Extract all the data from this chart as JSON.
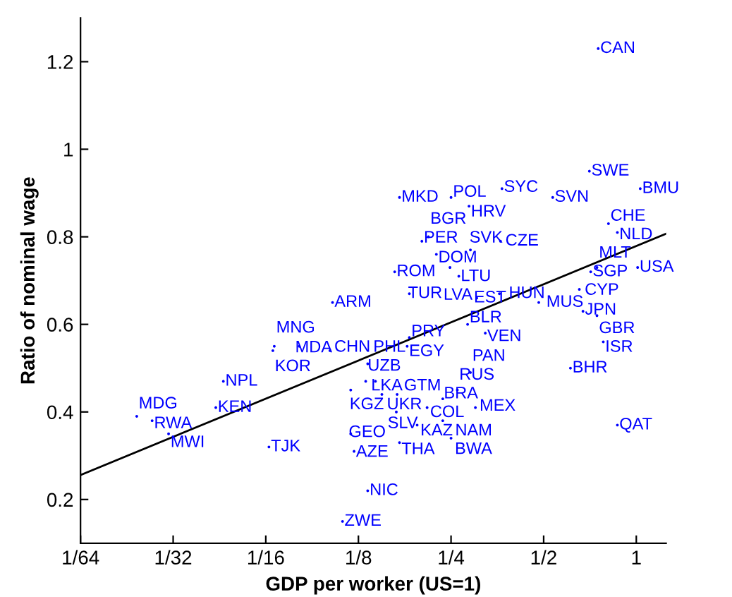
{
  "chart_data": {
    "type": "scatter",
    "xlabel": "GDP per worker (US=1)",
    "ylabel": "Ratio of nominal wage",
    "log": "x",
    "xlim": [
      0.015625,
      1.25
    ],
    "ylim": [
      0.1,
      1.3
    ],
    "xticks": [
      {
        "value": 0.015625,
        "label": "1/64"
      },
      {
        "value": 0.03125,
        "label": "1/32"
      },
      {
        "value": 0.0625,
        "label": "1/16"
      },
      {
        "value": 0.125,
        "label": "1/8"
      },
      {
        "value": 0.25,
        "label": "1/4"
      },
      {
        "value": 0.5,
        "label": "1/2"
      },
      1
    ],
    "yticks": [
      0.2,
      0.4,
      0.6,
      0.8,
      1,
      1.2
    ],
    "grid": false,
    "legend": false,
    "series": [
      {
        "marker": "circle",
        "color": "#0000ff",
        "x": [
          0.752,
          0.704,
          1.03,
          0.366,
          0.535,
          0.17,
          0.25,
          0.286,
          0.812,
          0.868,
          0.201,
          0.211,
          0.289,
          0.362,
          0.224,
          0.248,
          0.265,
          0.164,
          0.183,
          0.103,
          0.303,
          0.359,
          0.482,
          0.283,
          0.323,
          0.183,
          0.18,
          0.101,
          0.0666,
          0.0659,
          0.0803,
          0.0455,
          0.043,
          0.0238,
          0.0267,
          0.0302,
          0.064,
          0.134,
          0.289,
          0.118,
          0.132,
          0.142,
          0.149,
          0.167,
          0.166,
          0.209,
          0.235,
          0.262,
          0.3,
          0.194,
          0.235,
          0.25,
          0.17,
          0.118,
          0.121,
          0.134,
          0.111,
          0.711,
          0.745,
          1.01,
          0.653,
          0.671,
          0.745,
          0.781,
          0.611,
          0.868
        ],
        "values": [
          1.23,
          0.95,
          0.91,
          0.91,
          0.89,
          0.89,
          0.89,
          0.87,
          0.83,
          0.81,
          0.79,
          0.8,
          0.77,
          0.79,
          0.76,
          0.73,
          0.71,
          0.72,
          0.67,
          0.65,
          0.66,
          0.67,
          0.65,
          0.6,
          0.58,
          0.57,
          0.55,
          0.54,
          0.55,
          0.54,
          0.55,
          0.47,
          0.41,
          0.39,
          0.38,
          0.35,
          0.32,
          0.51,
          0.49,
          0.45,
          0.47,
          0.47,
          0.44,
          0.44,
          0.4,
          0.41,
          0.43,
          0.45,
          0.41,
          0.37,
          0.38,
          0.34,
          0.33,
          0.35,
          0.31,
          0.22,
          0.15,
          0.72,
          0.73,
          0.73,
          0.68,
          0.63,
          0.62,
          0.56,
          0.5,
          0.37
        ],
        "value_labels": [
          "CAN",
          "SWE",
          "BMU",
          "SYC",
          "SVN",
          "MKD",
          "POL",
          "HRV",
          "CHE",
          "NLD",
          "PER",
          "BGR",
          "SVK",
          "CZE",
          "DOM",
          "LVA",
          "LTU",
          "ROM",
          "TUR",
          "ARM",
          "EST",
          "HUN",
          "MUS",
          "BLR",
          "VEN",
          "PRY",
          "EGY",
          "CHN",
          "MNG",
          "KOR",
          "MDA",
          "NPL",
          "KEN",
          "MDG",
          "RWA",
          "MWI",
          "TJK",
          "PHL",
          "PAN",
          "KGZ",
          "UZB",
          "LKA",
          "UKR",
          "GTM",
          "SLV",
          "COL",
          "BRA",
          "RUS",
          "MEX",
          "KAZ",
          "NAM",
          "BWA",
          "THA",
          "GEO",
          "AZE",
          "NIC",
          "ZWE",
          "SGP",
          "MLT",
          "USA",
          "CYP",
          "JPN",
          "GBR",
          "ISR",
          "BHR",
          "QAT"
        ]
      },
      {
        "type": "line",
        "marker": "none",
        "color": "#000000",
        "x": [
          0.015625,
          1.25
        ],
        "values": [
          0.256,
          0.807
        ]
      }
    ]
  }
}
